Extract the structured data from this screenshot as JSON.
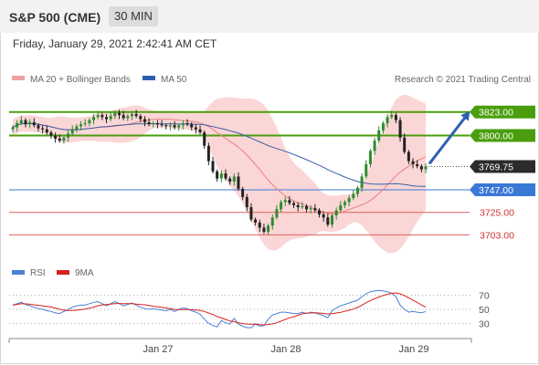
{
  "header": {
    "title": "S&P 500 (CME)",
    "interval": "30 MIN",
    "datetime": "Friday, January 29, 2021 2:42:41 AM CET"
  },
  "copyright": "Research © 2021 Trading Central",
  "legend": {
    "ma20": "MA 20 + Bollinger Bands",
    "ma50": "MA 50",
    "rsi": "RSI",
    "rsi_ma": "9MA"
  },
  "colors": {
    "up_candle": "#2e8b2e",
    "down_candle": "#222222",
    "band_fill": "#f9c8c8",
    "ma20": "#e88080",
    "ma50": "#3a5fa8",
    "support_line": "#e06060",
    "pivot_line": "#3a78d6",
    "resistance_line": "#4a9e0e",
    "rsi": "#4a7fd6",
    "rsi_ma": "#d62020",
    "arrow": "#2e5fae"
  },
  "chart_data": [
    {
      "type": "candlestick",
      "x_ticks": [
        "Jan 27",
        "Jan 28",
        "Jan 29"
      ],
      "ylim": [
        3690,
        3845
      ],
      "levels": [
        {
          "value": 3823.0,
          "label": "3823.00",
          "kind": "resistance"
        },
        {
          "value": 3800.0,
          "label": "3800.00",
          "kind": "resistance"
        },
        {
          "value": 3769.75,
          "label": "3769.75",
          "kind": "last"
        },
        {
          "value": 3747.0,
          "label": "3747.00",
          "kind": "pivot"
        },
        {
          "value": 3725.0,
          "label": "3725.00",
          "kind": "support"
        },
        {
          "value": 3703.0,
          "label": "3703.00",
          "kind": "support"
        }
      ],
      "close": [
        3808,
        3812,
        3815,
        3811,
        3813,
        3810,
        3807,
        3806,
        3803,
        3800,
        3797,
        3795,
        3798,
        3802,
        3806,
        3809,
        3811,
        3812,
        3815,
        3818,
        3820,
        3818,
        3816,
        3819,
        3822,
        3820,
        3817,
        3819,
        3821,
        3819,
        3816,
        3813,
        3811,
        3812,
        3811,
        3810,
        3809,
        3810,
        3808,
        3810,
        3812,
        3811,
        3808,
        3806,
        3803,
        3790,
        3775,
        3765,
        3758,
        3763,
        3758,
        3755,
        3760,
        3748,
        3740,
        3730,
        3718,
        3715,
        3710,
        3706,
        3712,
        3720,
        3728,
        3735,
        3737,
        3734,
        3732,
        3730,
        3731,
        3728,
        3729,
        3727,
        3723,
        3720,
        3713,
        3722,
        3727,
        3732,
        3735,
        3739,
        3743,
        3749,
        3760,
        3772,
        3785,
        3795,
        3805,
        3812,
        3818,
        3820,
        3815,
        3798,
        3784,
        3775,
        3772,
        3770,
        3767,
        3769.75
      ],
      "rsi": {
        "ylim": [
          15,
          85
        ],
        "ticks": [
          70,
          50,
          30
        ],
        "values": [
          56,
          58,
          60,
          57,
          55,
          53,
          51,
          50,
          48,
          47,
          45,
          44,
          47,
          50,
          53,
          55,
          56,
          56,
          58,
          60,
          61,
          58,
          55,
          58,
          61,
          58,
          55,
          57,
          59,
          56,
          53,
          51,
          50,
          51,
          50,
          49,
          48,
          50,
          47,
          50,
          52,
          51,
          48,
          46,
          43,
          36,
          30,
          27,
          25,
          34,
          31,
          29,
          37,
          29,
          26,
          24,
          24,
          29,
          26,
          27,
          36,
          42,
          44,
          46,
          46,
          45,
          44,
          44,
          46,
          44,
          46,
          45,
          43,
          41,
          38,
          48,
          52,
          55,
          57,
          59,
          61,
          63,
          68,
          72,
          75,
          76,
          77,
          76,
          75,
          73,
          68,
          56,
          50,
          46,
          47,
          46,
          45,
          47
        ]
      }
    }
  ]
}
